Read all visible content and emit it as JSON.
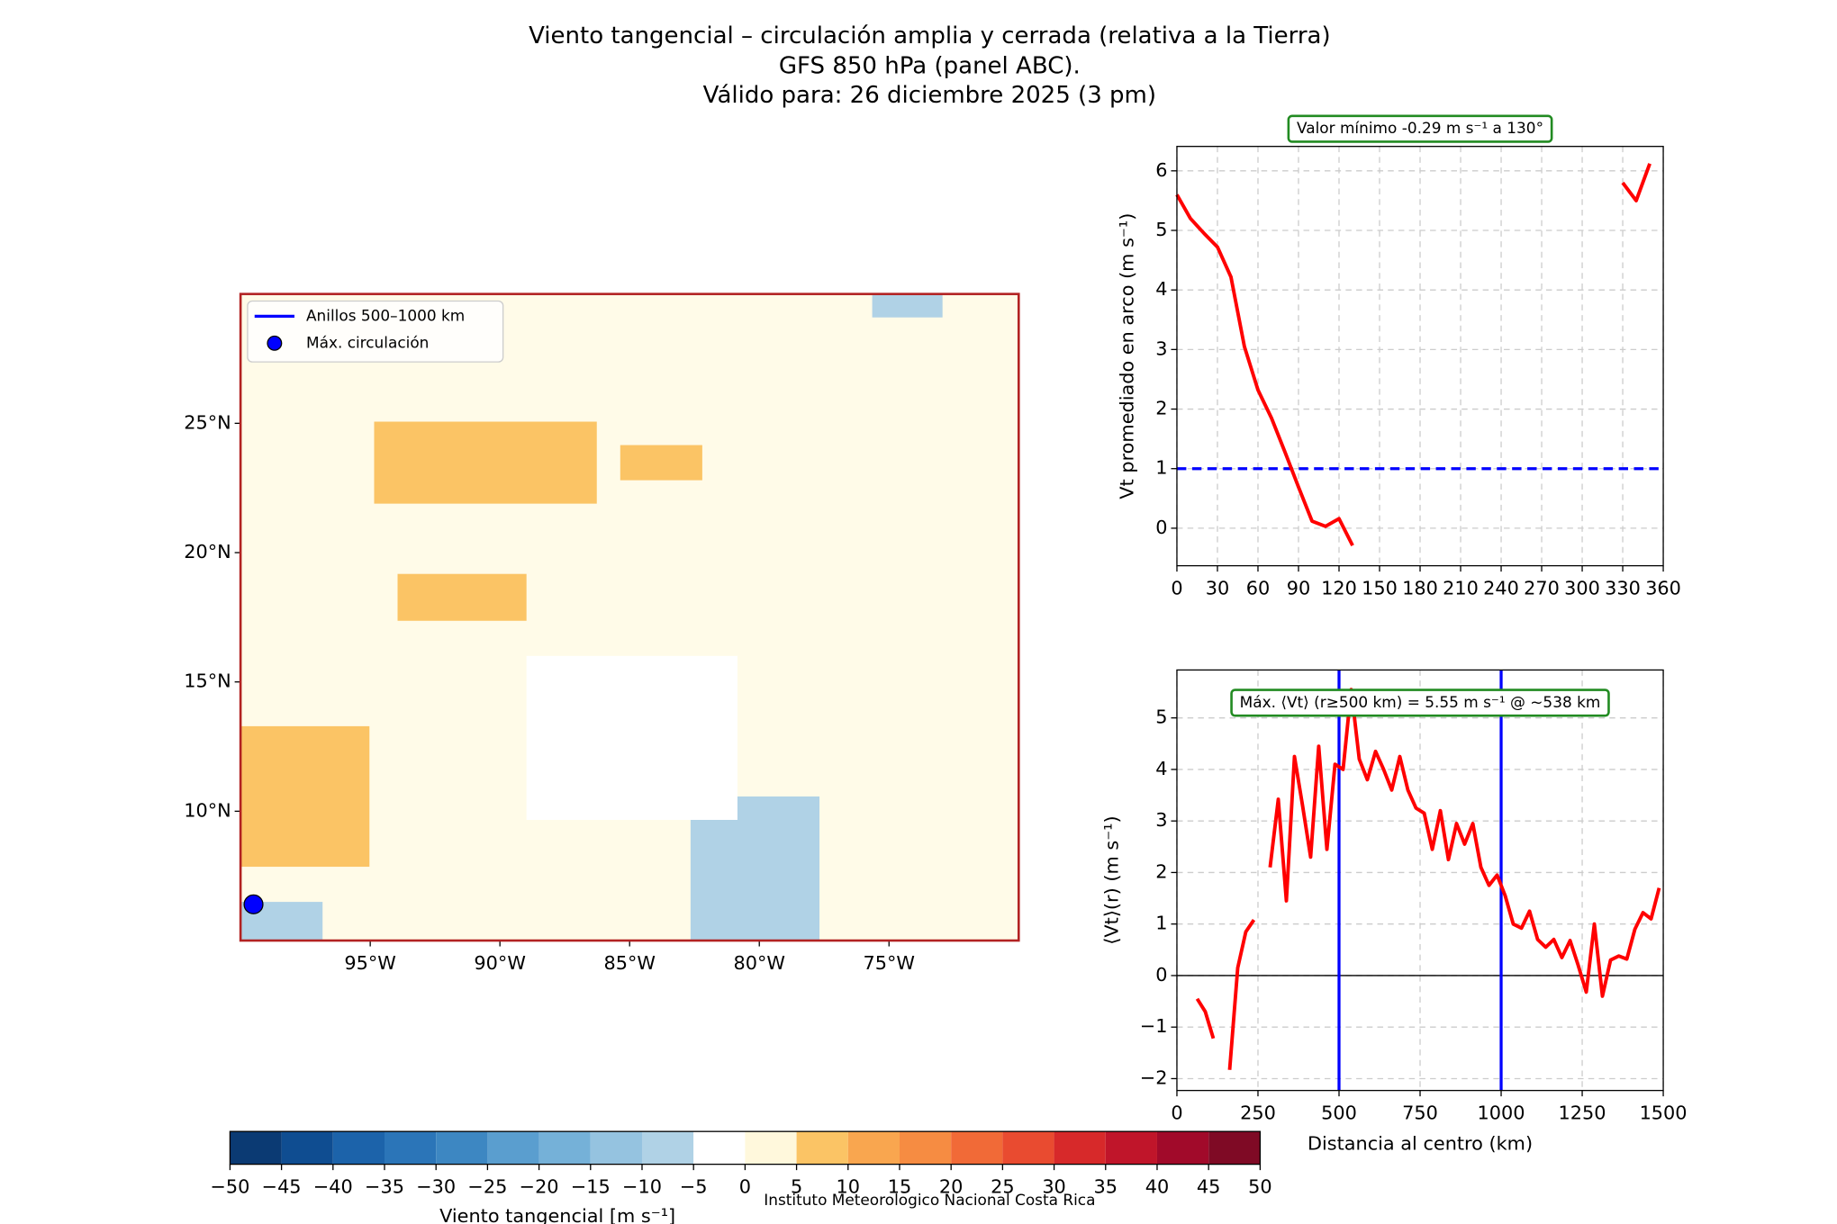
{
  "figure": {
    "title_lines": [
      "Viento tangencial – circulación amplia y cerrada (relativa a la Tierra)",
      "GFS 850 hPa (panel ABC).",
      "Válido para: 26 diciembre 2025 (3 pm)"
    ],
    "footer": "Instituto Meteorologico Nacional Costa Rica"
  },
  "chart_data": [
    {
      "type": "map",
      "xlim": [
        -100,
        -70
      ],
      "ylim": [
        5,
        30
      ],
      "xticks": [
        {
          "value": -95,
          "label": "95°W"
        },
        {
          "value": -90,
          "label": "90°W"
        },
        {
          "value": -85,
          "label": "85°W"
        },
        {
          "value": -80,
          "label": "80°W"
        },
        {
          "value": -75,
          "label": "75°W"
        }
      ],
      "yticks": [
        {
          "value": 10,
          "label": "10°N"
        },
        {
          "value": 15,
          "label": "15°N"
        },
        {
          "value": 20,
          "label": "20°N"
        },
        {
          "value": 25,
          "label": "25°N"
        }
      ],
      "series": [
        {
          "name": "Anillos 500–1000 km",
          "color": "#0000ff",
          "kind": "ring"
        },
        {
          "name": "Máx. circulación",
          "color": "#0000ff",
          "kind": "point",
          "x": [
            -99.5
          ],
          "values": [
            6.4
          ]
        }
      ]
    },
    {
      "type": "line",
      "annotation": "Valor mínimo -0.29 m s⁻¹ a 130°",
      "ylabel": "Vt promediado en arco (m s⁻¹)",
      "x": [
        0,
        10,
        20,
        30,
        40,
        50,
        60,
        70,
        80,
        90,
        100,
        110,
        120,
        130,
        140,
        150,
        160,
        170,
        180,
        190,
        200,
        210,
        220,
        230,
        240,
        250,
        260,
        270,
        280,
        290,
        300,
        310,
        320,
        330,
        340,
        350
      ],
      "series": [
        {
          "color": "#ff0000",
          "values": [
            5.6,
            5.2,
            4.95,
            4.72,
            4.22,
            3.05,
            2.32,
            1.85,
            1.28,
            0.69,
            0.12,
            0.03,
            0.16,
            -0.29,
            null,
            null,
            null,
            null,
            null,
            null,
            null,
            null,
            null,
            null,
            null,
            null,
            null,
            null,
            null,
            null,
            null,
            null,
            null,
            5.8,
            5.5,
            6.12
          ]
        }
      ],
      "hlines": [
        {
          "value": 1,
          "color": "#0000ff",
          "dashed": true
        }
      ],
      "xlim": [
        0,
        360
      ],
      "xticks": [
        0,
        30,
        60,
        90,
        120,
        150,
        180,
        210,
        240,
        270,
        300,
        330,
        360
      ],
      "ylim": [
        -0.63,
        6.41
      ],
      "yticks": [
        0,
        1,
        2,
        3,
        4,
        5,
        6
      ],
      "grid": true
    },
    {
      "type": "line",
      "annotation": "Máx. ⟨Vt⟩ (r≥500 km) = 5.55 m s⁻¹ @ ~538 km",
      "ylabel": "⟨Vt⟩(r) (m s⁻¹)",
      "xlabel": "Distancia al centro (km)",
      "x": [
        62.5,
        87.5,
        112.5,
        137.5,
        162.5,
        187.5,
        212.5,
        237.5,
        262.5,
        287.5,
        312.5,
        337.5,
        362.5,
        387.5,
        412.5,
        437.5,
        462.5,
        487.5,
        512.5,
        537.5,
        562.5,
        587.5,
        612.5,
        637.5,
        662.5,
        687.5,
        712.5,
        737.5,
        762.5,
        787.5,
        812.5,
        837.5,
        862.5,
        887.5,
        912.5,
        937.5,
        962.5,
        987.5,
        1012.5,
        1037.5,
        1062.5,
        1087.5,
        1112.5,
        1137.5,
        1162.5,
        1187.5,
        1212.5,
        1237.5,
        1262.5,
        1287.5,
        1312.5,
        1337.5,
        1362.5,
        1387.5,
        1412.5,
        1437.5,
        1462.5,
        1487.5
      ],
      "series": [
        {
          "color": "#ff0000",
          "values": [
            -0.45,
            -0.7,
            -1.22,
            null,
            -1.83,
            0.15,
            0.85,
            1.08,
            null,
            2.1,
            3.42,
            1.45,
            4.25,
            3.3,
            2.3,
            4.45,
            2.45,
            4.1,
            4.0,
            5.55,
            4.2,
            3.8,
            4.35,
            4.0,
            3.6,
            4.25,
            3.6,
            3.25,
            3.15,
            2.45,
            3.2,
            2.25,
            2.95,
            2.55,
            2.95,
            2.1,
            1.75,
            1.95,
            1.55,
            1.0,
            0.92,
            1.25,
            0.7,
            0.55,
            0.7,
            0.35,
            0.68,
            0.2,
            -0.32,
            1.0,
            -0.4,
            0.3,
            0.38,
            0.32,
            0.9,
            1.22,
            1.1,
            1.7
          ]
        }
      ],
      "hlines": [
        {
          "value": 0,
          "color": "#000000",
          "dashed": false
        }
      ],
      "vlines": [
        {
          "value": 500,
          "color": "#0000ff"
        },
        {
          "value": 1000,
          "color": "#0000ff"
        }
      ],
      "xlim": [
        0,
        1500
      ],
      "xticks": [
        0,
        250,
        500,
        750,
        1000,
        1250,
        1500
      ],
      "ylim": [
        -2.23,
        5.93
      ],
      "yticks": [
        {
          "value": -2,
          "label": "−2"
        },
        {
          "value": -1,
          "label": "−1"
        },
        0,
        1,
        2,
        3,
        4,
        5
      ],
      "grid": true
    },
    {
      "type": "colorbar",
      "label": "Viento tangencial [m s⁻¹]",
      "bounds": [
        -50,
        -45,
        -40,
        -35,
        -30,
        -25,
        -20,
        -15,
        -10,
        -5,
        0,
        5,
        10,
        15,
        20,
        25,
        30,
        35,
        40,
        45,
        50
      ],
      "colors": [
        "#0b3a73",
        "#0f4d91",
        "#1c63aa",
        "#2b75b8",
        "#3d87c2",
        "#5a9ecf",
        "#75b1d8",
        "#95c3e0",
        "#b0d2e6",
        "#ffffff",
        "#fff8dc",
        "#fbc465",
        "#f9a64f",
        "#f68c42",
        "#f16a37",
        "#e94b30",
        "#d7292a",
        "#c0152a",
        "#a10a2a",
        "#7f0a25"
      ],
      "xticks": [
        {
          "value": -50,
          "label": "−50"
        },
        {
          "value": -45,
          "label": "−45"
        },
        {
          "value": -40,
          "label": "−40"
        },
        {
          "value": -35,
          "label": "−35"
        },
        {
          "value": -30,
          "label": "−30"
        },
        {
          "value": -25,
          "label": "−25"
        },
        {
          "value": -20,
          "label": "−20"
        },
        {
          "value": -15,
          "label": "−15"
        },
        {
          "value": -10,
          "label": "−10"
        },
        {
          "value": -5,
          "label": "−5"
        },
        0,
        5,
        10,
        15,
        20,
        25,
        30,
        35,
        40,
        45,
        50
      ],
      "xlim": [
        -50,
        50
      ]
    }
  ]
}
